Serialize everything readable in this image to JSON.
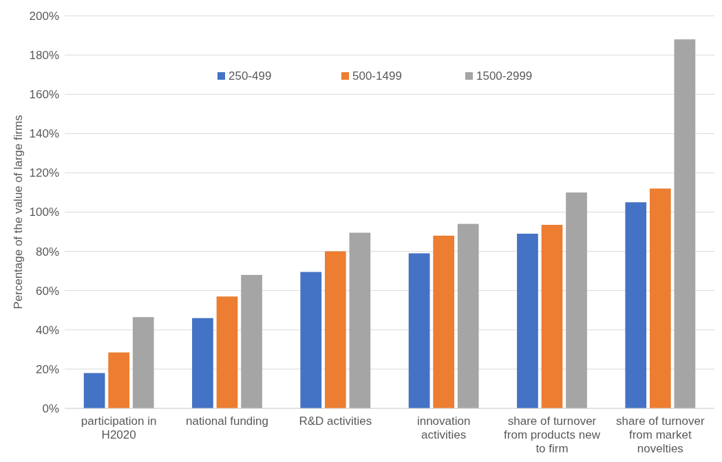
{
  "chart_data": {
    "type": "bar",
    "ylabel": "Percentage of the value of large firms",
    "categories": [
      "participation in H2020",
      "national funding",
      "R&D activities",
      "innovation activities",
      "share of turnover from products new to firm",
      "share of turnover from market novelties"
    ],
    "series": [
      {
        "name": "250-499",
        "color": "#4472c4",
        "values": [
          18,
          46,
          69.5,
          79,
          89,
          105
        ]
      },
      {
        "name": "500-1499",
        "color": "#ed7d31",
        "values": [
          28.5,
          57,
          80,
          88,
          93.5,
          112
        ]
      },
      {
        "name": "1500-2999",
        "color": "#a5a5a5",
        "values": [
          46.5,
          68,
          89.5,
          94,
          110,
          188
        ]
      }
    ],
    "ylim": [
      0,
      200
    ],
    "yticks": [
      {
        "value": 0,
        "label": "0%"
      },
      {
        "value": 20,
        "label": "20%"
      },
      {
        "value": 40,
        "label": "40%"
      },
      {
        "value": 60,
        "label": "60%"
      },
      {
        "value": 80,
        "label": "80%"
      },
      {
        "value": 100,
        "label": "100%"
      },
      {
        "value": 120,
        "label": "120%"
      },
      {
        "value": 140,
        "label": "140%"
      },
      {
        "value": 160,
        "label": "160%"
      },
      {
        "value": 180,
        "label": "180%"
      },
      {
        "value": 200,
        "label": "200%"
      }
    ],
    "grid": "y",
    "legend": "top"
  }
}
